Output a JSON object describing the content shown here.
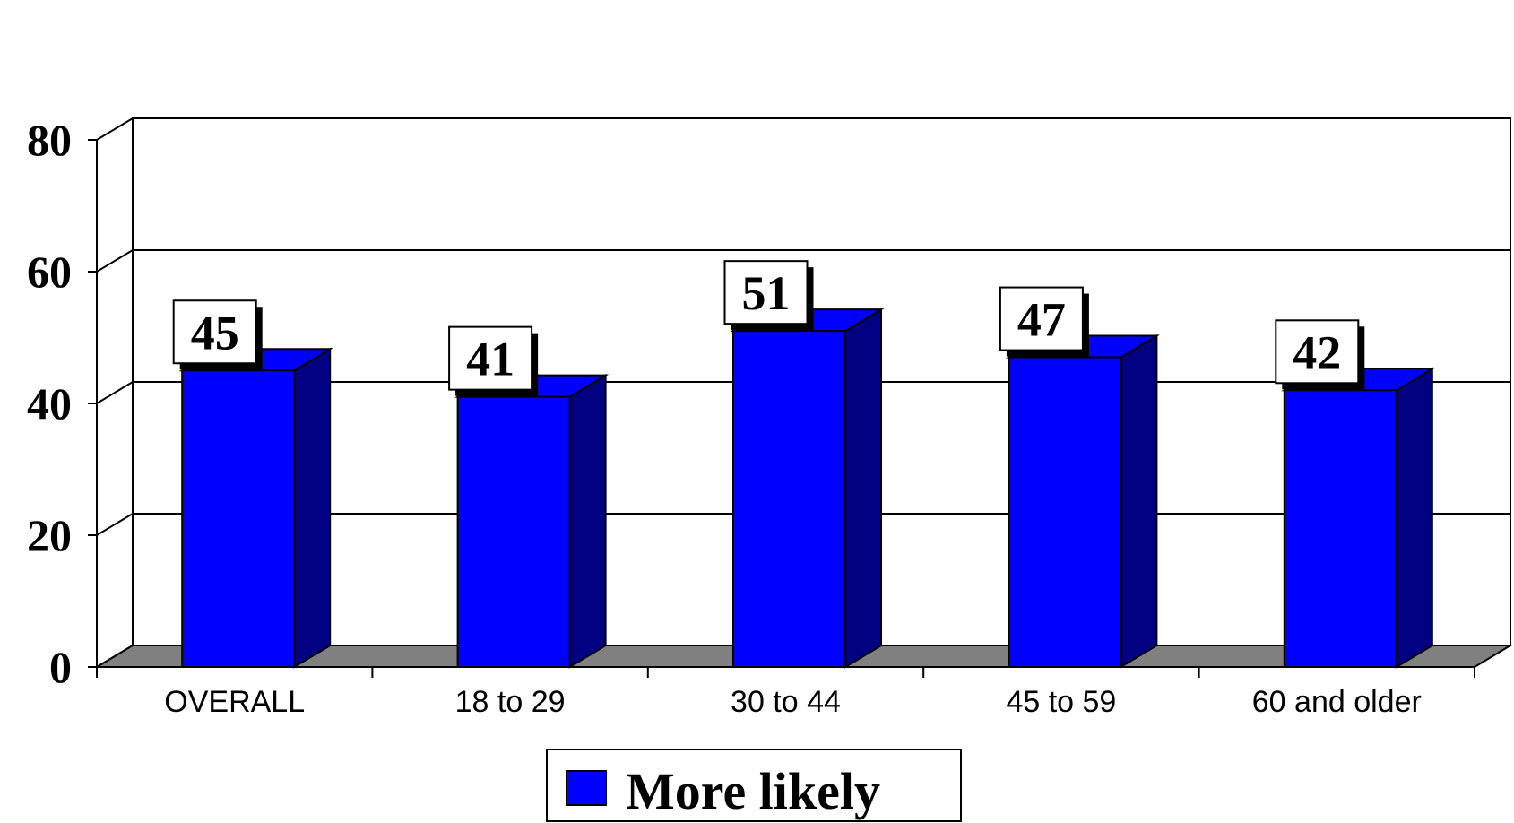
{
  "chart_data": {
    "type": "bar",
    "categories": [
      "OVERALL",
      "18 to 29",
      "30 to 44",
      "45 to 59",
      "60 and older"
    ],
    "series": [
      {
        "name": "More likely",
        "values": [
          45,
          41,
          51,
          47,
          42
        ]
      }
    ],
    "ylim": [
      0,
      80
    ],
    "yticks": [
      0,
      20,
      40,
      60,
      80
    ],
    "grid": true,
    "legend_position": "bottom",
    "colors": {
      "bar_front": "#0000ff",
      "bar_side": "#000080",
      "bar_top": "#0000ff",
      "floor": "#808080",
      "background": "#ffffff"
    }
  }
}
